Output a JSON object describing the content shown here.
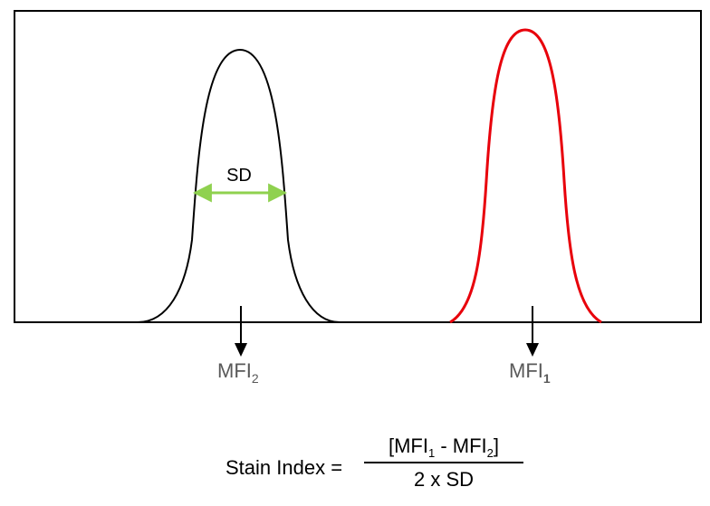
{
  "diagram": {
    "sd_label": "SD",
    "mfi_2": {
      "base": "MFI",
      "sub": "2"
    },
    "mfi_1": {
      "base": "MFI",
      "sub": "1"
    },
    "formula": {
      "lhs": "Stain Index =",
      "numerator": {
        "open": "[MFI",
        "sub1": "1",
        "minus": " - MFI",
        "sub2": "2",
        "close": "]"
      },
      "denominator": "2 x SD"
    },
    "colors": {
      "frame": "#000000",
      "negative_peak": "#000000",
      "positive_peak": "#e8000b",
      "sd_arrow": "#8fd14f",
      "label_gray": "#595959"
    }
  }
}
